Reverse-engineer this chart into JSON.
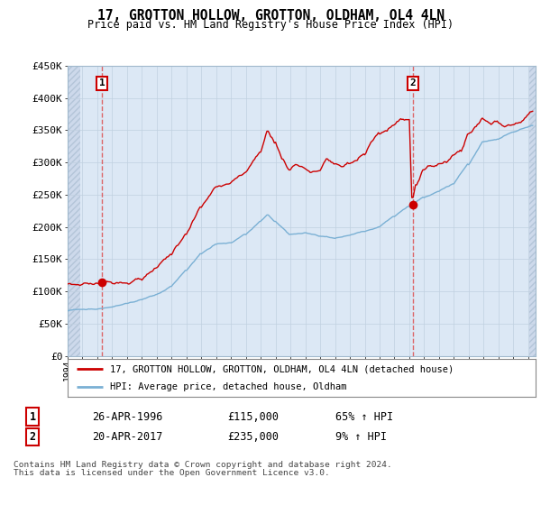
{
  "title": "17, GROTTON HOLLOW, GROTTON, OLDHAM, OL4 4LN",
  "subtitle": "Price paid vs. HM Land Registry's House Price Index (HPI)",
  "legend_line1": "17, GROTTON HOLLOW, GROTTON, OLDHAM, OL4 4LN (detached house)",
  "legend_line2": "HPI: Average price, detached house, Oldham",
  "footnote1": "Contains HM Land Registry data © Crown copyright and database right 2024.",
  "footnote2": "This data is licensed under the Open Government Licence v3.0.",
  "table_row1": [
    "1",
    "26-APR-1996",
    "£115,000",
    "65% ↑ HPI"
  ],
  "table_row2": [
    "2",
    "20-APR-2017",
    "£235,000",
    "9% ↑ HPI"
  ],
  "ylim": [
    0,
    450000
  ],
  "yticks": [
    0,
    50000,
    100000,
    150000,
    200000,
    250000,
    300000,
    350000,
    400000,
    450000
  ],
  "ytick_labels": [
    "£0",
    "£50K",
    "£100K",
    "£150K",
    "£200K",
    "£250K",
    "£300K",
    "£350K",
    "£400K",
    "£450K"
  ],
  "sale1_year": 1996.3,
  "sale1_price": 115000,
  "sale2_year": 2017.25,
  "sale2_price": 235000,
  "line_color_property": "#cc0000",
  "line_color_hpi": "#7ab0d4",
  "marker_color": "#cc0000",
  "bg_color": "#dce8f5",
  "hatch_color": "#c8d8eb",
  "grid_color": "#c0d0e0",
  "spine_color": "#a0b8cc"
}
